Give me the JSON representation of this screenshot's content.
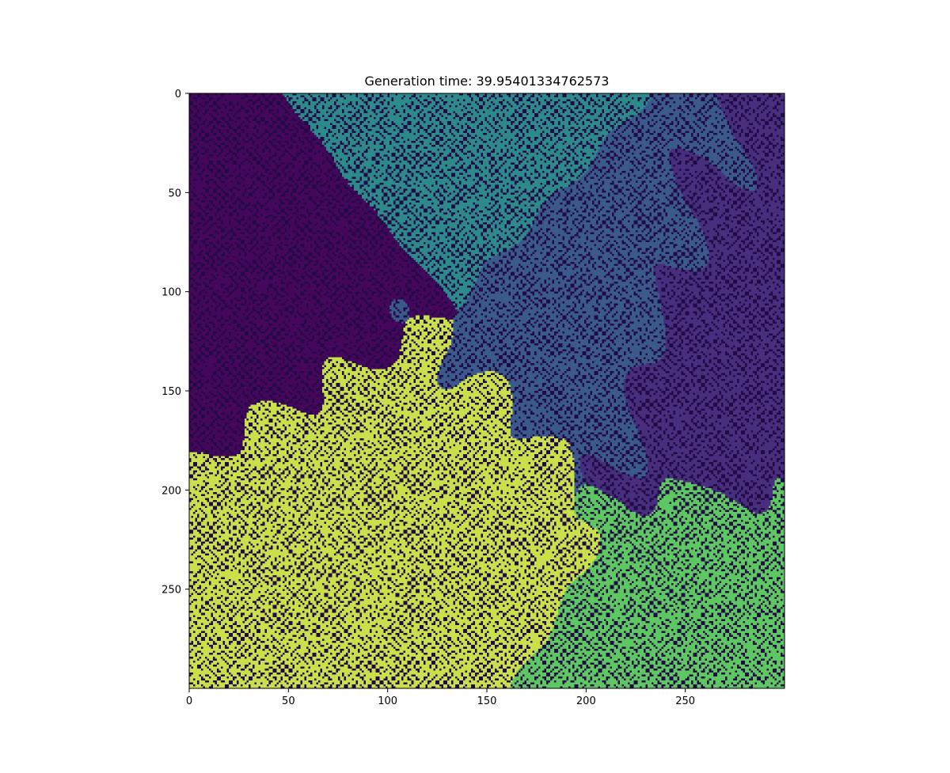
{
  "chart_data": {
    "type": "heatmap",
    "title": "Generation time: 39.95401334762573",
    "xlabel": "",
    "ylabel": "",
    "grid_shape": [
      300,
      300
    ],
    "xlim": [
      0,
      300
    ],
    "ylim": [
      300,
      0
    ],
    "x_ticks": [
      0,
      50,
      100,
      150,
      200,
      250
    ],
    "y_ticks": [
      0,
      50,
      100,
      150,
      200,
      250
    ],
    "colormap": "viridis",
    "grid": false,
    "legend": "none",
    "regions": [
      {
        "name": "dark-purple-top-left",
        "color": "#44075c",
        "center": [
          45,
          75
        ]
      },
      {
        "name": "purple-band-right",
        "color": "#472f7d",
        "center": [
          265,
          140
        ]
      },
      {
        "name": "teal-top",
        "color": "#2c8a8a",
        "center": [
          110,
          25
        ]
      },
      {
        "name": "blue-middle",
        "color": "#3b5a8c",
        "center": [
          200,
          120
        ]
      },
      {
        "name": "yellow-cluster",
        "color": "#c9e04a",
        "center": [
          120,
          200
        ]
      },
      {
        "name": "green-bottom-right",
        "color": "#5dc862",
        "center": [
          265,
          260
        ]
      }
    ]
  }
}
